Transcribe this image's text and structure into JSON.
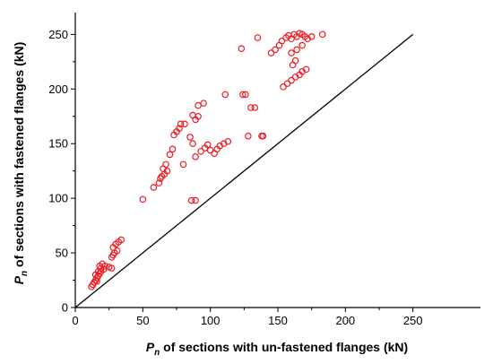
{
  "chart_data": {
    "type": "scatter",
    "xlabel": {
      "symbol": "P",
      "subscript": "n",
      "text": " of sections with un-fastened flanges (kN)"
    },
    "ylabel": {
      "symbol": "P",
      "subscript": "n",
      "text": " of sections with fastened flanges (kN)"
    },
    "xlim": [
      0,
      300
    ],
    "ylim": [
      0,
      270
    ],
    "x_ticks": [
      "0",
      "50",
      "100",
      "150",
      "200",
      "250"
    ],
    "y_ticks": [
      "0",
      "50",
      "100",
      "150",
      "200",
      "250"
    ],
    "marker": {
      "shape": "open-circle",
      "color": "#ee1c24"
    },
    "reference_line": {
      "type": "y=x",
      "from": [
        0,
        0
      ],
      "to": [
        250,
        250
      ],
      "color": "#000000"
    },
    "grid": false,
    "legend": "none",
    "series": [
      {
        "points": [
          [
            12,
            19
          ],
          [
            13,
            21
          ],
          [
            14,
            23
          ],
          [
            15,
            25
          ],
          [
            16,
            27
          ],
          [
            17,
            29
          ],
          [
            18,
            31
          ],
          [
            19,
            33
          ],
          [
            15,
            30
          ],
          [
            17,
            33
          ],
          [
            19,
            36
          ],
          [
            20,
            40
          ],
          [
            18,
            38
          ],
          [
            22,
            38
          ],
          [
            21,
            35
          ],
          [
            16,
            24
          ],
          [
            25,
            37
          ],
          [
            27,
            36
          ],
          [
            27,
            46
          ],
          [
            28,
            48
          ],
          [
            29,
            50
          ],
          [
            31,
            52
          ],
          [
            28,
            55
          ],
          [
            30,
            58
          ],
          [
            32,
            60
          ],
          [
            34,
            62
          ],
          [
            50,
            99
          ],
          [
            58,
            110
          ],
          [
            62,
            114
          ],
          [
            63,
            118
          ],
          [
            64,
            120
          ],
          [
            66,
            122
          ],
          [
            68,
            125
          ],
          [
            65,
            127
          ],
          [
            67,
            131
          ],
          [
            70,
            140
          ],
          [
            72,
            145
          ],
          [
            73,
            158
          ],
          [
            75,
            161
          ],
          [
            77,
            164
          ],
          [
            78,
            168
          ],
          [
            81,
            168
          ],
          [
            85,
            156
          ],
          [
            80,
            131
          ],
          [
            87,
            150
          ],
          [
            89,
            172
          ],
          [
            91,
            175
          ],
          [
            91,
            185
          ],
          [
            95,
            187
          ],
          [
            86,
            98
          ],
          [
            89,
            98
          ],
          [
            93,
            143
          ],
          [
            96,
            146
          ],
          [
            98,
            149
          ],
          [
            100,
            144
          ],
          [
            103,
            141
          ],
          [
            105,
            145
          ],
          [
            107,
            148
          ],
          [
            110,
            150
          ],
          [
            113,
            152
          ],
          [
            89,
            138
          ],
          [
            87,
            176
          ],
          [
            111,
            195
          ],
          [
            123,
            237
          ],
          [
            124,
            195
          ],
          [
            126,
            195
          ],
          [
            128,
            157
          ],
          [
            130,
            183
          ],
          [
            133,
            183
          ],
          [
            135,
            247
          ],
          [
            138,
            157
          ],
          [
            139,
            157
          ],
          [
            145,
            233
          ],
          [
            148,
            236
          ],
          [
            151,
            240
          ],
          [
            153,
            244
          ],
          [
            156,
            247
          ],
          [
            158,
            249
          ],
          [
            160,
            246
          ],
          [
            162,
            250
          ],
          [
            164,
            248
          ],
          [
            166,
            251
          ],
          [
            168,
            250
          ],
          [
            170,
            248
          ],
          [
            172,
            246
          ],
          [
            175,
            248
          ],
          [
            183,
            250
          ],
          [
            160,
            233
          ],
          [
            163,
            226
          ],
          [
            168,
            240
          ],
          [
            161,
            222
          ],
          [
            154,
            202
          ],
          [
            157,
            205
          ],
          [
            160,
            208
          ],
          [
            163,
            211
          ],
          [
            166,
            213
          ],
          [
            168,
            216
          ],
          [
            171,
            218
          ],
          [
            164,
            236
          ]
        ]
      }
    ]
  }
}
